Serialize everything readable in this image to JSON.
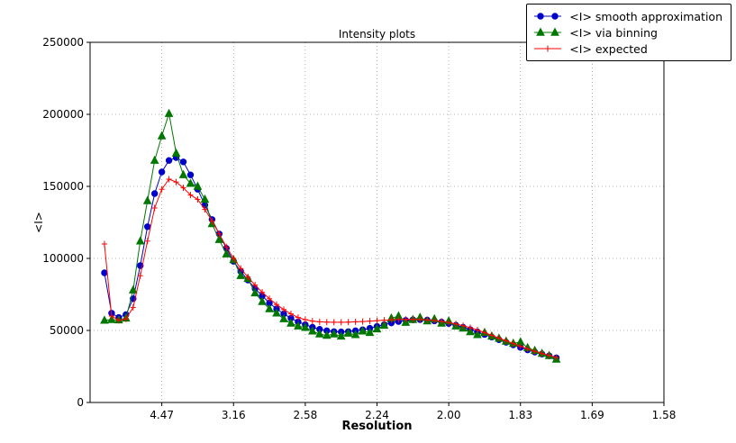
{
  "figure": {
    "title": "Intensity plots",
    "xlabel": "Resolution",
    "ylabel": "<I>"
  },
  "legend": {
    "items": [
      {
        "label": "<I> smooth approximation"
      },
      {
        "label": "<I> via binning"
      },
      {
        "label": "<I> expected"
      }
    ]
  },
  "chart_data": {
    "type": "line",
    "title": "Intensity plots",
    "xlabel": "Resolution",
    "ylabel": "<I>",
    "x_axis_note": "x axis is 1/d^2; tick labels are d-spacing resolutions in Angstrom",
    "xlim_s": [
      0,
      0.4
    ],
    "ylim": [
      0,
      250000
    ],
    "grid": "dotted",
    "legend_position": "upper right, outside top of axes",
    "x_ticks": [
      {
        "s": 0.05,
        "label": "4.47"
      },
      {
        "s": 0.1,
        "label": "3.16"
      },
      {
        "s": 0.15,
        "label": "2.58"
      },
      {
        "s": 0.2,
        "label": "2.24"
      },
      {
        "s": 0.25,
        "label": "2.00"
      },
      {
        "s": 0.3,
        "label": "1.83"
      },
      {
        "s": 0.35,
        "label": "1.69"
      },
      {
        "s": 0.4,
        "label": "1.58"
      }
    ],
    "y_ticks": [
      0,
      50000,
      100000,
      150000,
      200000,
      250000
    ],
    "x_s": [
      0.01,
      0.015,
      0.02,
      0.025,
      0.03,
      0.035,
      0.04,
      0.045,
      0.05,
      0.055,
      0.06,
      0.065,
      0.07,
      0.075,
      0.08,
      0.085,
      0.09,
      0.095,
      0.1,
      0.105,
      0.11,
      0.115,
      0.12,
      0.125,
      0.13,
      0.135,
      0.14,
      0.145,
      0.15,
      0.155,
      0.16,
      0.165,
      0.17,
      0.175,
      0.18,
      0.185,
      0.19,
      0.195,
      0.2,
      0.205,
      0.21,
      0.215,
      0.22,
      0.225,
      0.23,
      0.235,
      0.24,
      0.245,
      0.25,
      0.255,
      0.26,
      0.265,
      0.27,
      0.275,
      0.28,
      0.285,
      0.29,
      0.295,
      0.3,
      0.305,
      0.31,
      0.315,
      0.32,
      0.325
    ],
    "series": [
      {
        "name": "<I> smooth approximation",
        "color": "#0000cc",
        "marker": "circle",
        "values": [
          90000,
          62000,
          59000,
          61000,
          72000,
          95000,
          122000,
          145000,
          160000,
          168000,
          170000,
          167000,
          158000,
          148000,
          137000,
          127000,
          117000,
          107000,
          98000,
          91000,
          85000,
          79000,
          74000,
          69000,
          65000,
          61500,
          58500,
          56000,
          54000,
          52200,
          50800,
          49800,
          49200,
          49000,
          49200,
          49800,
          50500,
          51500,
          52800,
          54000,
          55200,
          56200,
          57000,
          57400,
          57500,
          57200,
          56600,
          55800,
          54800,
          53600,
          52200,
          50600,
          49000,
          47200,
          45400,
          43600,
          41800,
          40000,
          38200,
          36500,
          35000,
          33600,
          32400,
          31000
        ]
      },
      {
        "name": "<I> via binning",
        "color": "#007700",
        "marker": "triangle",
        "values": [
          57000,
          57500,
          57200,
          58500,
          78000,
          112000,
          140000,
          168000,
          185000,
          200500,
          173000,
          158000,
          152000,
          150000,
          141000,
          124000,
          113000,
          103000,
          99000,
          88000,
          86000,
          76000,
          70000,
          65000,
          62000,
          58000,
          55000,
          53000,
          52000,
          49500,
          47500,
          46500,
          47500,
          46000,
          48000,
          47000,
          49500,
          48500,
          51000,
          53500,
          58500,
          60000,
          55500,
          57500,
          59000,
          56500,
          58000,
          55000,
          56500,
          53000,
          51500,
          49000,
          47000,
          48500,
          46000,
          44500,
          42500,
          41000,
          42000,
          38000,
          36000,
          34000,
          32500,
          30000
        ]
      },
      {
        "name": "<I> expected",
        "color": "#ff0000",
        "marker": "plus",
        "values": [
          110000,
          60000,
          57000,
          58000,
          66000,
          88000,
          112000,
          135000,
          148000,
          155000,
          153000,
          149000,
          144000,
          141000,
          134000,
          126000,
          117000,
          108000,
          100000,
          93000,
          87000,
          81500,
          76500,
          72000,
          68000,
          64500,
          61500,
          59000,
          57500,
          56500,
          56000,
          55800,
          55700,
          55700,
          55800,
          56000,
          56200,
          56500,
          56800,
          57100,
          57400,
          57600,
          57700,
          57700,
          57600,
          57300,
          56900,
          56300,
          55500,
          54500,
          53300,
          51900,
          50300,
          48500,
          46600,
          44700,
          42800,
          40900,
          39000,
          37200,
          35500,
          34000,
          32700,
          31200
        ]
      }
    ]
  }
}
